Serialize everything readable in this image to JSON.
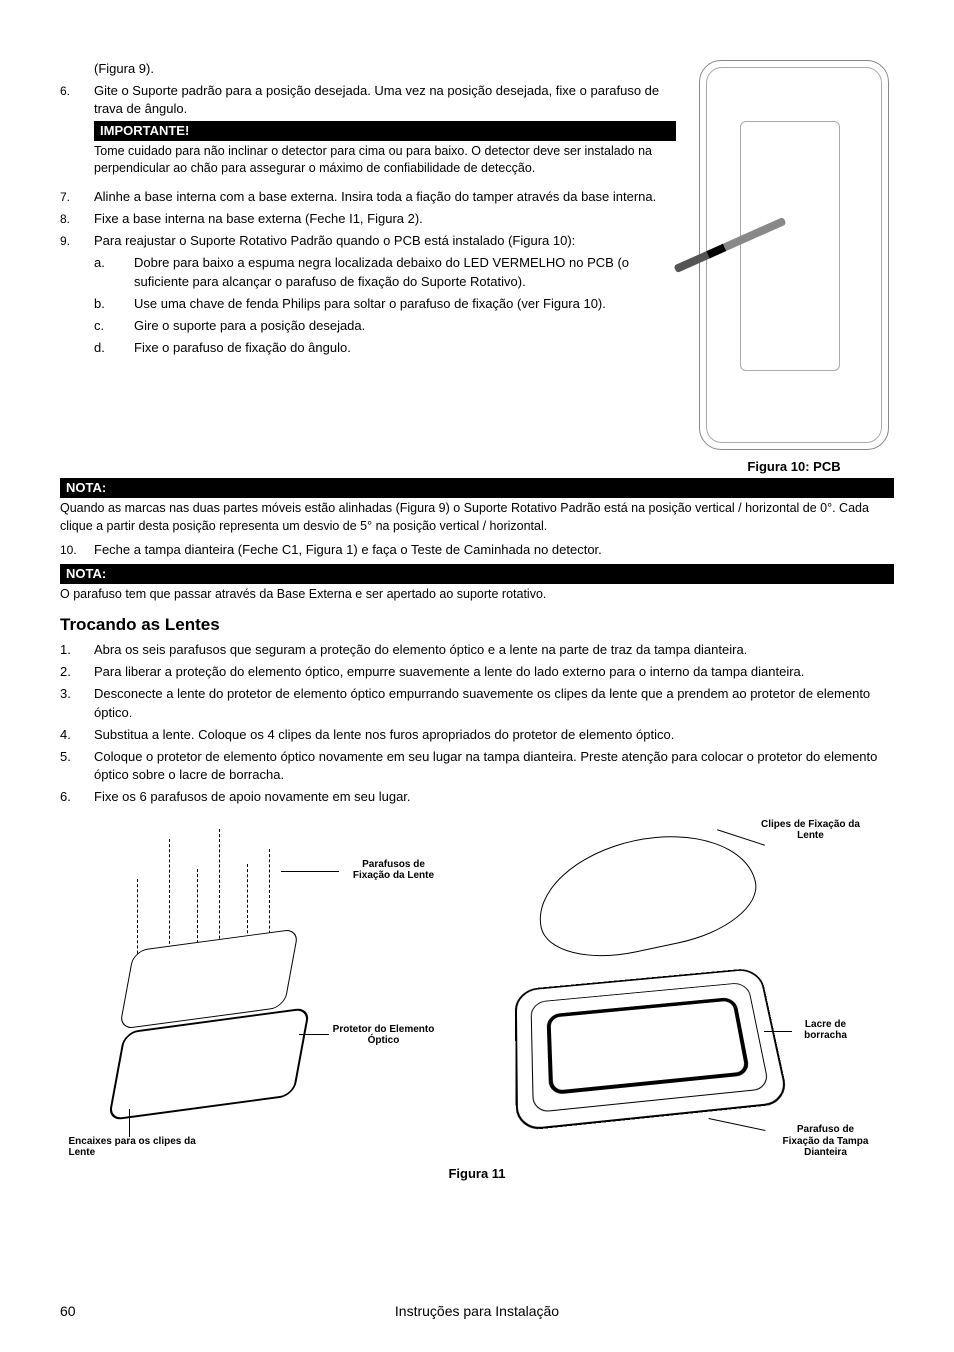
{
  "steps_top": [
    {
      "n": "",
      "text_pre": "(Figura 9)."
    },
    {
      "n": "6.",
      "text": "Gite o Suporte padrão para a posição desejada. Uma vez na posição desejada, fixe o parafuso de trava de ângulo.",
      "importante_title": "IMPORTANTE!",
      "importante_text": "Tome cuidado para não inclinar o detector para cima ou para baixo. O detector deve ser instalado na perpendicular ao chão para assegurar o máximo de confiabilidade de detecção."
    },
    {
      "n": "7.",
      "text": "Alinhe a base interna com a base externa. Insira toda a fiação do tamper através da base interna."
    },
    {
      "n": "8.",
      "text": "Fixe a base interna na base externa (Feche I1, Figura 2)."
    },
    {
      "n": "9.",
      "text": "Para reajustar o Suporte Rotativo Padrão quando o PCB está instalado (Figura 10):",
      "sub": [
        {
          "n": "a.",
          "text": "Dobre para baixo a espuma negra localizada debaixo do LED VERMELHO no PCB (o suficiente para alcançar o parafuso de fixação do Suporte Rotativo)."
        },
        {
          "n": "b.",
          "text": "Use uma chave de fenda Philips para soltar o parafuso de fixação (ver Figura 10)."
        },
        {
          "n": "c.",
          "text": "Gire o suporte para a posição desejada."
        },
        {
          "n": "d.",
          "text": "Fixe o parafuso de fixação do ângulo."
        }
      ]
    }
  ],
  "fig10_caption": "Figura 10: PCB",
  "nota1_title": "NOTA:",
  "nota1_text": "Quando as marcas nas duas partes móveis estão alinhadas (Figura 9) o Suporte Rotativo Padrão está na posição vertical / horizontal de 0°. Cada clique a partir desta posição representa um desvio de 5° na posição vertical / horizontal.",
  "step10": {
    "n": "10.",
    "text": "Feche a tampa dianteira (Feche C1, Figura 1) e faça o Teste de Caminhada no detector."
  },
  "nota2_title": "NOTA:",
  "nota2_text": "O parafuso tem que passar através da Base Externa e ser apertado ao suporte rotativo.",
  "section_heading": "Trocando as Lentes",
  "lens_steps": [
    {
      "n": "1.",
      "text": "Abra os seis parafusos que seguram a proteção do elemento óptico e a lente na parte de traz da tampa dianteira."
    },
    {
      "n": "2.",
      "text": "Para liberar a proteção do elemento óptico, empurre suavemente a lente do lado externo para o interno da tampa dianteira."
    },
    {
      "n": "3.",
      "text": "Desconecte a lente do protetor de elemento óptico empurrando suavemente os clipes da lente que a prendem ao protetor de elemento óptico."
    },
    {
      "n": "4.",
      "text": "Substitua a lente. Coloque os 4 clipes da lente nos furos apropriados do protetor de elemento óptico."
    },
    {
      "n": "5.",
      "text": "Coloque o protetor de elemento óptico novamente em seu lugar na tampa dianteira. Preste atenção para colocar o protetor do elemento óptico sobre o lacre de borracha."
    },
    {
      "n": "6.",
      "text": "Fixe os 6 parafusos de apoio novamente em seu lugar."
    }
  ],
  "fig11": {
    "caption": "Figura 11",
    "labels": {
      "parafusos": "Parafusos de\nFixação da Lente",
      "protetor": "Protetor do Elemento\nÓptico",
      "encaixes": "Encaixes para os clipes da\nLente",
      "clipes": "Clipes de Fixação da\nLente",
      "lacre": "Lacre de\nborracha",
      "parafuso_tampa": "Parafuso de\nFixação da Tampa\nDianteira"
    }
  },
  "footer": {
    "page": "60",
    "title": "Instruções para Instalação"
  }
}
